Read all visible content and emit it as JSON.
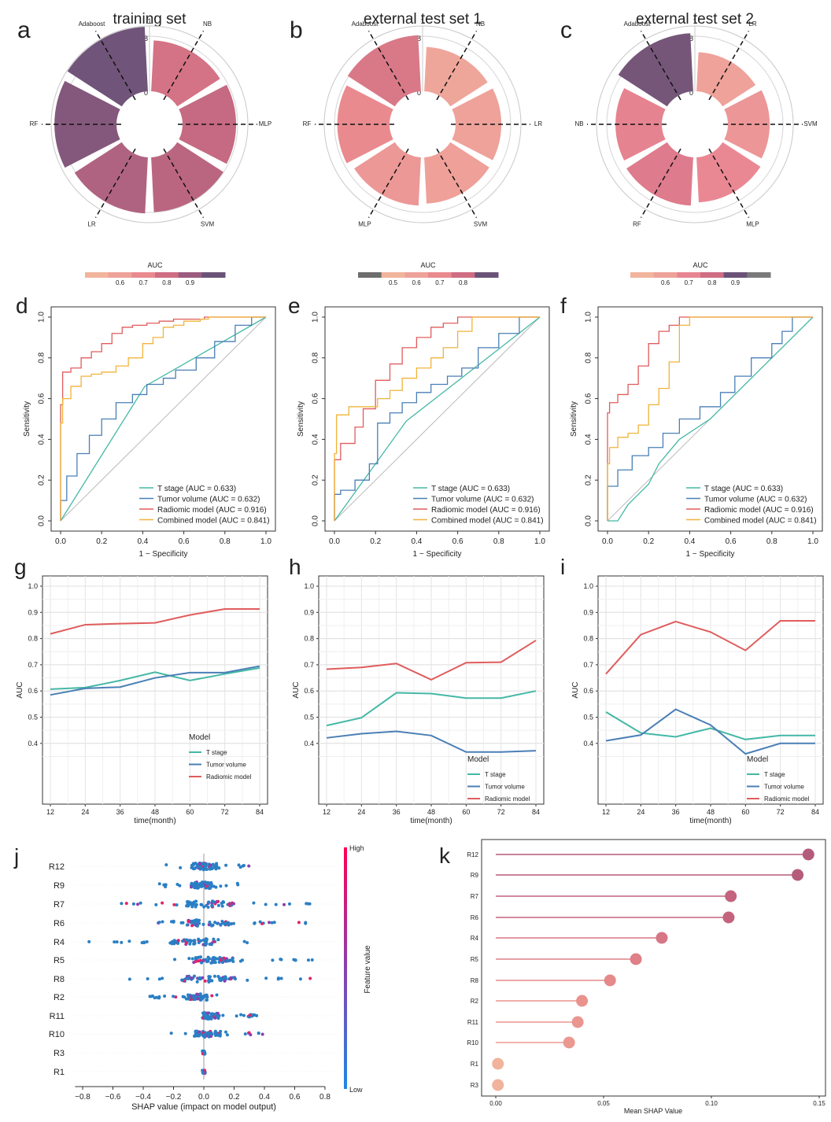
{
  "radial": [
    {
      "letter": "a",
      "title": "training set",
      "ring_labels": [
        "1",
        "0.8",
        "0"
      ],
      "models": [
        "NB",
        "MLP",
        "SVM",
        "LR",
        "RF",
        "Adaboost"
      ],
      "values": [
        0.78,
        0.82,
        0.84,
        0.86,
        0.95,
        0.99
      ],
      "colorbar": {
        "label": "AUC",
        "ticks": [
          "0.6",
          "0.7",
          "0.8",
          "0.9"
        ],
        "colors": [
          "#f1b49c",
          "#eea29a",
          "#e98a8f",
          "#cf6d82",
          "#9c5c80",
          "#6b5378"
        ]
      }
    },
    {
      "letter": "b",
      "title": "external test set 1",
      "ring_labels": [
        "1",
        "0.8",
        "0"
      ],
      "models": [
        "NB",
        "LR",
        "SVM",
        "MLP",
        "RF",
        "Adaboost"
      ],
      "values": [
        0.68,
        0.7,
        0.71,
        0.74,
        0.8,
        0.86
      ],
      "colorbar": {
        "label": "AUC",
        "ticks": [
          "0.5",
          "0.6",
          "0.7",
          "0.8"
        ],
        "colors": [
          "#6d6d6d",
          "#f1b49c",
          "#eea29a",
          "#e98a8f",
          "#cf6d82",
          "#6b5378"
        ]
      }
    },
    {
      "letter": "c",
      "title": "external test set 2",
      "ring_labels": [
        "1",
        "0.8",
        "0"
      ],
      "models": [
        "LR",
        "SVM",
        "MLP",
        "RF",
        "NB",
        "Adaboost"
      ],
      "values": [
        0.6,
        0.64,
        0.69,
        0.74,
        0.71,
        0.89
      ],
      "colorbar": {
        "label": "AUC",
        "ticks": [
          "0.6",
          "0.7",
          "0.8",
          "0.9"
        ],
        "colors": [
          "#f1b49c",
          "#eea29a",
          "#e88592",
          "#cf6d82",
          "#6b5378",
          "#7a7a7a"
        ]
      }
    }
  ],
  "roc_legend": [
    "T stage (AUC = 0.633)",
    "Tumor volume (AUC = 0.632)",
    "Radiomic model (AUC = 0.916)",
    "Combined model (AUC = 0.841)"
  ],
  "roc_colors": [
    "#45b8a6",
    "#4a7fb5",
    "#e05c5c",
    "#f0b43a"
  ],
  "chart_data": [
    {
      "type": "line",
      "letter": "d",
      "xlabel": "1 − Specificity",
      "ylabel": "Sensitivity",
      "xlim": [
        0,
        1
      ],
      "ylim": [
        0,
        1
      ],
      "ticks": [
        "0.0",
        "0.2",
        "0.4",
        "0.6",
        "0.8",
        "1.0"
      ],
      "series": [
        {
          "name": "T stage (AUC = 0.633)",
          "x": [
            0,
            0.41,
            1
          ],
          "y": [
            0,
            0.66,
            1
          ]
        },
        {
          "name": "Tumor volume (AUC = 0.632)",
          "x": [
            0,
            0.03,
            0.08,
            0.14,
            0.2,
            0.27,
            0.35,
            0.42,
            0.5,
            0.56,
            0.66,
            0.75,
            0.85,
            0.93,
            1
          ],
          "y": [
            0,
            0.1,
            0.22,
            0.33,
            0.42,
            0.5,
            0.58,
            0.62,
            0.67,
            0.7,
            0.74,
            0.8,
            0.88,
            0.96,
            1
          ]
        },
        {
          "name": "Radiomic model (AUC = 0.916)",
          "x": [
            0,
            0.01,
            0.05,
            0.1,
            0.15,
            0.2,
            0.25,
            0.3,
            0.35,
            0.42,
            0.48,
            0.55,
            0.63,
            0.7,
            0.75,
            0.8,
            1
          ],
          "y": [
            0,
            0.57,
            0.73,
            0.75,
            0.8,
            0.83,
            0.87,
            0.92,
            0.95,
            0.96,
            0.97,
            0.98,
            0.99,
            0.99,
            1,
            1,
            1
          ]
        },
        {
          "name": "Combined model (AUC = 0.841)",
          "x": [
            0,
            0.01,
            0.05,
            0.1,
            0.15,
            0.2,
            0.27,
            0.33,
            0.4,
            0.45,
            0.5,
            0.55,
            0.6,
            0.68,
            0.72,
            0.8,
            1
          ],
          "y": [
            0,
            0.48,
            0.6,
            0.66,
            0.71,
            0.72,
            0.73,
            0.76,
            0.8,
            0.87,
            0.9,
            0.95,
            0.96,
            0.98,
            0.99,
            1,
            1
          ]
        }
      ]
    },
    {
      "type": "line",
      "letter": "e",
      "xlabel": "1 − Specificity",
      "ylabel": "Sensitivity",
      "xlim": [
        0,
        1
      ],
      "ylim": [
        0,
        1
      ],
      "ticks": [
        "0.0",
        "0.2",
        "0.4",
        "0.6",
        "0.8",
        "1.0"
      ],
      "series": [
        {
          "name": "T stage (AUC = 0.633)",
          "x": [
            0,
            0.35,
            1
          ],
          "y": [
            0,
            0.49,
            1
          ]
        },
        {
          "name": "Tumor volume (AUC = 0.632)",
          "x": [
            0,
            0.03,
            0.1,
            0.17,
            0.21,
            0.27,
            0.33,
            0.4,
            0.47,
            0.55,
            0.62,
            0.7,
            0.8,
            0.9,
            1
          ],
          "y": [
            0,
            0.13,
            0.15,
            0.2,
            0.28,
            0.48,
            0.53,
            0.58,
            0.63,
            0.67,
            0.71,
            0.75,
            0.85,
            0.92,
            1
          ]
        },
        {
          "name": "Radiomic model (AUC = 0.916)",
          "x": [
            0,
            0.03,
            0.1,
            0.14,
            0.2,
            0.27,
            0.33,
            0.4,
            0.47,
            0.53,
            0.6,
            0.67,
            0.73,
            0.8,
            1
          ],
          "y": [
            0,
            0.3,
            0.38,
            0.46,
            0.55,
            0.69,
            0.77,
            0.85,
            0.9,
            0.95,
            0.97,
            1,
            1,
            1,
            1
          ]
        },
        {
          "name": "Combined model (AUC = 0.841)",
          "x": [
            0,
            0.01,
            0.07,
            0.14,
            0.21,
            0.27,
            0.33,
            0.4,
            0.47,
            0.53,
            0.6,
            0.67,
            0.73,
            0.8,
            1
          ],
          "y": [
            0,
            0.33,
            0.52,
            0.56,
            0.56,
            0.6,
            0.64,
            0.7,
            0.75,
            0.8,
            0.85,
            0.93,
            1,
            1,
            1
          ]
        }
      ]
    },
    {
      "type": "line",
      "letter": "f",
      "xlabel": "1 − Specificity",
      "ylabel": "Sensitivity",
      "xlim": [
        0,
        1
      ],
      "ylim": [
        0,
        1
      ],
      "ticks": [
        "0.0",
        "0.2",
        "0.4",
        "0.6",
        "0.8",
        "1.0"
      ],
      "series": [
        {
          "name": "T stage (AUC = 0.633)",
          "x": [
            0,
            0.05,
            0.1,
            0.2,
            0.25,
            0.35,
            0.5,
            0.6,
            0.7,
            0.8,
            0.9,
            1
          ],
          "y": [
            0,
            0,
            0.08,
            0.18,
            0.28,
            0.4,
            0.5,
            0.6,
            0.7,
            0.8,
            0.9,
            1
          ]
        },
        {
          "name": "Tumor volume (AUC = 0.632)",
          "x": [
            0,
            0.05,
            0.12,
            0.2,
            0.27,
            0.35,
            0.45,
            0.55,
            0.62,
            0.7,
            0.8,
            0.85,
            0.9,
            1
          ],
          "y": [
            0,
            0.17,
            0.25,
            0.32,
            0.36,
            0.43,
            0.5,
            0.56,
            0.63,
            0.71,
            0.8,
            0.87,
            0.93,
            1
          ]
        },
        {
          "name": "Radiomic model (AUC = 0.916)",
          "x": [
            0,
            0.01,
            0.05,
            0.1,
            0.15,
            0.2,
            0.25,
            0.3,
            0.35,
            0.45,
            0.55,
            0.7,
            1
          ],
          "y": [
            0,
            0.53,
            0.58,
            0.62,
            0.67,
            0.76,
            0.87,
            0.93,
            0.96,
            1,
            1,
            1,
            1
          ]
        },
        {
          "name": "Combined model (AUC = 0.841)",
          "x": [
            0,
            0.01,
            0.05,
            0.1,
            0.15,
            0.2,
            0.25,
            0.3,
            0.35,
            0.4,
            0.45,
            0.6,
            1
          ],
          "y": [
            0,
            0.28,
            0.36,
            0.41,
            0.43,
            0.47,
            0.57,
            0.65,
            0.78,
            0.96,
            1,
            1,
            1
          ]
        }
      ]
    },
    {
      "type": "line",
      "letter": "g",
      "xlabel": "time(month)",
      "ylabel": "AUC",
      "x": [
        12,
        24,
        36,
        48,
        60,
        72,
        84
      ],
      "xticks": [
        "12",
        "24",
        "36",
        "48",
        "60",
        "72",
        "84"
      ],
      "yticks": [
        "0.4",
        "0.5",
        "0.6",
        "0.7",
        "0.8",
        "0.9",
        "1.0"
      ],
      "ylim": [
        0.25,
        1.0
      ],
      "legend_title": "Model",
      "series": [
        {
          "name": "T stage",
          "values": [
            0.607,
            0.613,
            0.64,
            0.672,
            0.64,
            0.665,
            0.688
          ],
          "color": "#45b8a6"
        },
        {
          "name": "Tumor volume",
          "values": [
            0.585,
            0.61,
            0.615,
            0.65,
            0.67,
            0.67,
            0.695
          ],
          "color": "#4a7fb5"
        },
        {
          "name": "Radiomic model",
          "values": [
            0.818,
            0.853,
            0.857,
            0.86,
            0.89,
            0.913,
            0.913
          ],
          "color": "#e05c5c"
        }
      ]
    },
    {
      "type": "line",
      "letter": "h",
      "xlabel": "time(month)",
      "ylabel": "AUC",
      "x": [
        12,
        24,
        36,
        48,
        60,
        72,
        84
      ],
      "xticks": [
        "12",
        "24",
        "36",
        "48",
        "60",
        "72",
        "84"
      ],
      "yticks": [
        "0.4",
        "0.5",
        "0.6",
        "0.7",
        "0.8",
        "0.9",
        "1.0"
      ],
      "ylim": [
        0.0,
        1.0
      ],
      "legend_title": "Model",
      "series": [
        {
          "name": "T stage",
          "values": [
            0.468,
            0.498,
            0.593,
            0.59,
            0.573,
            0.573,
            0.6
          ],
          "color": "#45b8a6"
        },
        {
          "name": "Tumor volume",
          "values": [
            0.421,
            0.437,
            0.446,
            0.43,
            0.367,
            0.367,
            0.372
          ],
          "color": "#4a7fb5"
        },
        {
          "name": "Radiomic model",
          "values": [
            0.683,
            0.69,
            0.705,
            0.643,
            0.708,
            0.71,
            0.793
          ],
          "color": "#e05c5c"
        }
      ]
    },
    {
      "type": "line",
      "letter": "i",
      "xlabel": "time(month)",
      "ylabel": "AUC",
      "x": [
        12,
        24,
        36,
        48,
        60,
        72,
        84
      ],
      "xticks": [
        "12",
        "24",
        "36",
        "48",
        "60",
        "72",
        "84"
      ],
      "yticks": [
        "0.4",
        "0.5",
        "0.6",
        "0.7",
        "0.8",
        "0.9",
        "1.0"
      ],
      "ylim": [
        0.0,
        1.0
      ],
      "legend_title": "Model",
      "series": [
        {
          "name": "T stage",
          "values": [
            0.52,
            0.44,
            0.425,
            0.458,
            0.415,
            0.43,
            0.43
          ],
          "color": "#45b8a6"
        },
        {
          "name": "Tumor volume",
          "values": [
            0.41,
            0.432,
            0.53,
            0.47,
            0.36,
            0.4,
            0.4
          ],
          "color": "#4a7fb5"
        },
        {
          "name": "Radiomic model",
          "values": [
            0.665,
            0.815,
            0.865,
            0.825,
            0.755,
            0.868,
            0.868
          ],
          "color": "#e05c5c"
        }
      ]
    },
    {
      "type": "scatter",
      "letter": "j",
      "xlabel": "SHAP value (impact on model output)",
      "xlim": [
        -0.85,
        0.78
      ],
      "xticks": [
        "−0.8",
        "−0.6",
        "−0.4",
        "−0.2",
        "0.0",
        "0.2",
        "0.4",
        "0.6",
        "0.8"
      ],
      "features": [
        "R12",
        "R9",
        "R7",
        "R6",
        "R4",
        "R5",
        "R8",
        "R2",
        "R11",
        "R10",
        "R3",
        "R1"
      ],
      "colorbar": {
        "label": "Feature value",
        "high": "High",
        "low": "Low"
      }
    },
    {
      "type": "bar",
      "letter": "k",
      "xlabel": "Mean SHAP Value",
      "xlim": [
        -0.004,
        0.15
      ],
      "xticks": [
        "0.00",
        "0.05",
        "0.10",
        "0.15"
      ],
      "categories": [
        "R12",
        "R9",
        "R7",
        "R6",
        "R4",
        "R5",
        "R8",
        "R2",
        "R11",
        "R10",
        "R1",
        "R3"
      ],
      "values": [
        0.145,
        0.14,
        0.109,
        0.108,
        0.077,
        0.065,
        0.053,
        0.04,
        0.038,
        0.034,
        0.001,
        0.001
      ]
    }
  ]
}
